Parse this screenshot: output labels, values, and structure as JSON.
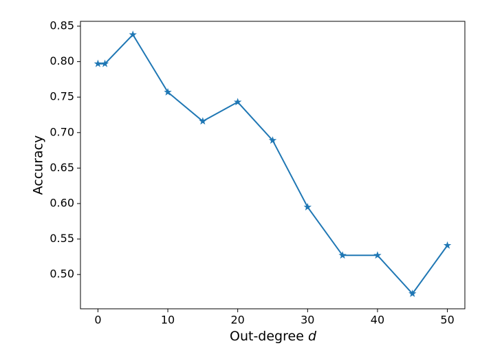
{
  "chart_data": {
    "type": "line",
    "xlabel": {
      "text": "Out-degree",
      "variable": "d"
    },
    "ylabel": "Accuracy",
    "x": [
      0,
      1,
      5,
      10,
      15,
      20,
      25,
      30,
      35,
      40,
      45,
      50
    ],
    "series": [
      {
        "color": "#1f77b4",
        "marker": "star",
        "values": [
          0.797,
          0.797,
          0.838,
          0.757,
          0.716,
          0.743,
          0.689,
          0.595,
          0.527,
          0.527,
          0.473,
          0.541
        ]
      }
    ],
    "xlim": [
      -2.5,
      52.5
    ],
    "xticks": [
      0,
      10,
      20,
      30,
      40,
      50
    ],
    "ylim": [
      0.4517,
      0.8568
    ],
    "yticks": [
      {
        "value": 0.5,
        "label": "0.50"
      },
      0.55,
      {
        "value": 0.6,
        "label": "0.60"
      },
      0.65,
      {
        "value": 0.7,
        "label": "0.70"
      },
      0.75,
      {
        "value": 0.8,
        "label": "0.80"
      },
      0.85
    ],
    "grid": false
  }
}
